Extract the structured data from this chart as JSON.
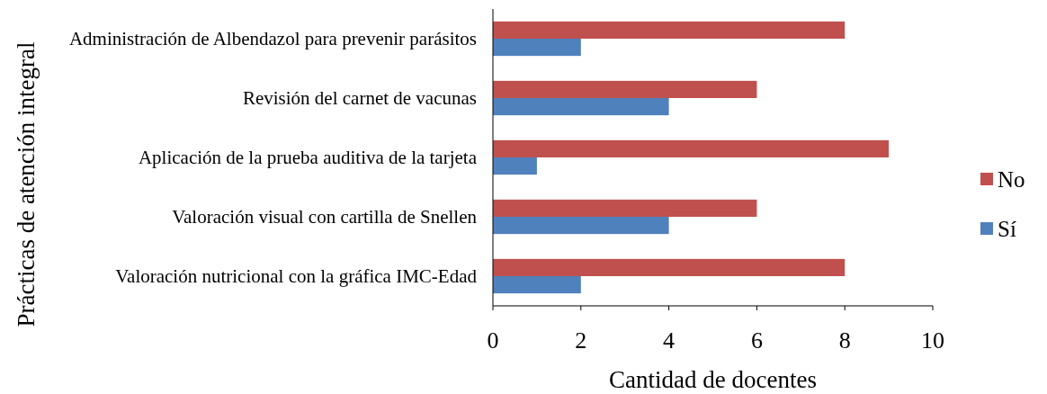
{
  "chart_data": {
    "type": "bar",
    "orientation": "horizontal",
    "categories": [
      "Administración de Albendazol para prevenir parásitos",
      "Revisión del carnet de vacunas",
      "Aplicación de la prueba auditiva de la tarjeta",
      "Valoración visual con cartilla de Snellen",
      "Valoración nutricional con la gráfica IMC-Edad"
    ],
    "series": [
      {
        "name": "No",
        "color": "#c0504d",
        "values": [
          8,
          6,
          9,
          6,
          8
        ]
      },
      {
        "name": "Sí",
        "color": "#4f81bd",
        "values": [
          2,
          4,
          1,
          4,
          2
        ]
      }
    ],
    "xlim": [
      0,
      10
    ],
    "xticks": [
      0,
      2,
      4,
      6,
      8,
      10
    ],
    "xlabel": "Cantidad de docentes",
    "ylabel": "Prácticas de atención integral",
    "legend": "right",
    "grid": false
  }
}
